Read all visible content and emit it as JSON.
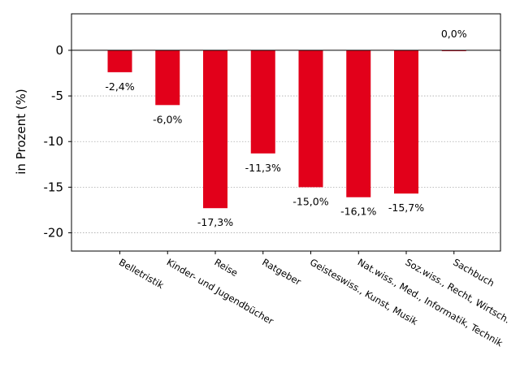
{
  "chart_data": {
    "type": "bar",
    "categories": [
      "Belletristik",
      "Kinder- und Jugendbücher",
      "Reise",
      "Ratgeber",
      "Geisteswiss., Kunst, Musik",
      "Nat.wiss., Med., Informatik, Technik",
      "Soz.wiss., Recht, Wirtsch.",
      "Sachbuch"
    ],
    "values": [
      -2.4,
      -6.0,
      -17.3,
      -11.3,
      -15.0,
      -16.1,
      -15.7,
      0.0
    ],
    "data_labels": [
      "-2,4%",
      "-6,0%",
      "-17,3%",
      "-11,3%",
      "-15,0%",
      "-16,1%",
      "-15,7%",
      "0,0%"
    ],
    "title": "",
    "xlabel": "",
    "ylabel": "in Prozent (%)",
    "ylim": [
      -22,
      4
    ],
    "yticks": [
      0,
      -5,
      -10,
      -15,
      -20
    ],
    "ytick_labels": [
      "0",
      "-5",
      "-10",
      "-15",
      "-20"
    ],
    "grid": "horizontal dotted",
    "bar_color": "#e2001a",
    "zero_line": true
  }
}
